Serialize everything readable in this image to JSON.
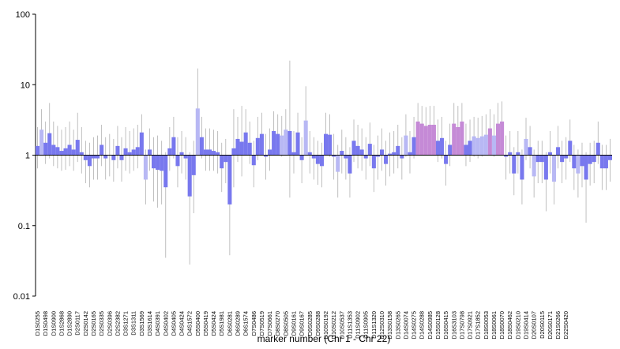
{
  "chart_data": {
    "type": "bar",
    "log_scale": true,
    "xlabel": "marker number (Chr 1 - Chr 22)",
    "ylim": [
      0.01,
      100
    ],
    "yticks": [
      0.01,
      0.1,
      1,
      10,
      100
    ],
    "baseline": 1,
    "categories": [
      "D1S0255",
      null,
      "D1S0498",
      null,
      "D1S0900",
      null,
      "D1S2868",
      null,
      "D1S2890",
      null,
      "D2S0117",
      null,
      "D2S0142",
      null,
      "D2S0165",
      null,
      "D2S0335",
      null,
      "D2S0396",
      null,
      "D2S2382",
      null,
      "D3S1271",
      null,
      "D3S1311",
      null,
      "D3S1569",
      null,
      "D3S1614",
      null,
      "D4S0391",
      null,
      "D4S0402",
      null,
      "D4S0405",
      null,
      "D4S0424",
      null,
      "D4S1572",
      null,
      "D5S0400",
      null,
      "D5S0419",
      null,
      "D5S0424",
      null,
      "D5S1981",
      null,
      "D6S0281",
      null,
      "D6S0289",
      null,
      "D6S1574",
      null,
      "D7S0486",
      null,
      "D7S0519",
      null,
      "D7S0661",
      null,
      "D8S0270",
      null,
      "D8S0505",
      null,
      "D9S0161",
      null,
      "D9S0167",
      null,
      "D9S0285",
      null,
      "D9S0288",
      null,
      "D10S0192",
      null,
      "D10S0212",
      null,
      "D10S0537",
      null,
      "D11S1353",
      null,
      "D11S0902",
      null,
      "D11S0905",
      null,
      "D11S1320",
      null,
      "D12S0310",
      null,
      "D13S0158",
      null,
      "D13S0265",
      null,
      "D14S0074",
      null,
      "D14S0275",
      null,
      "D14S0288",
      null,
      "D14S0985",
      null,
      "D15S0128",
      null,
      "D16S0415",
      null,
      "D16S3103",
      null,
      "D17S0798",
      null,
      "D17S0921",
      null,
      "D17S1852",
      null,
      "D18S0053",
      null,
      "D18S0061",
      null,
      "D18S0070",
      null,
      "D18S0462",
      null,
      "D19S0210",
      null,
      "D19S0414",
      null,
      "D20S0107",
      null,
      "D20S0115",
      null,
      "D20S0171",
      null,
      "D21S0266",
      null,
      "D22S0420",
      null,
      null,
      null,
      null,
      null,
      null,
      null,
      null,
      null,
      null,
      null
    ],
    "values": [
      1.35,
      2.3,
      1.5,
      2.05,
      1.4,
      1.3,
      1.15,
      1.25,
      1.4,
      1.2,
      1.65,
      1.1,
      0.85,
      0.7,
      0.9,
      0.9,
      1.4,
      0.9,
      1.0,
      0.85,
      1.35,
      0.85,
      1.25,
      1.1,
      1.2,
      1.3,
      2.1,
      0.45,
      1.2,
      0.65,
      0.62,
      0.6,
      0.35,
      1.25,
      1.8,
      0.7,
      1.1,
      0.9,
      0.26,
      0.52,
      4.6,
      1.8,
      1.2,
      1.2,
      1.15,
      1.1,
      0.65,
      0.8,
      0.2,
      1.25,
      1.7,
      1.55,
      2.1,
      1.5,
      0.72,
      1.75,
      2.0,
      0.95,
      1.2,
      2.2,
      2.0,
      1.9,
      2.3,
      2.2,
      1.1,
      2.1,
      0.85,
      3.1,
      1.1,
      0.9,
      0.75,
      0.7,
      2.0,
      1.95,
      0.95,
      0.58,
      1.15,
      0.9,
      0.55,
      1.6,
      1.35,
      1.2,
      0.9,
      1.45,
      0.65,
      0.95,
      1.2,
      0.75,
      1.05,
      1.1,
      1.35,
      0.9,
      1.9,
      1.1,
      1.8,
      3.0,
      2.8,
      2.6,
      2.7,
      2.7,
      1.6,
      1.75,
      0.75,
      1.4,
      2.8,
      2.5,
      3.0,
      1.4,
      1.6,
      1.85,
      1.75,
      1.85,
      1.95,
      2.4,
      1.9,
      2.8,
      3.0,
      0.95,
      1.1,
      0.55,
      1.1,
      0.45,
      1.7,
      1.3,
      0.5,
      0.8,
      0.8,
      0.45,
      1.1,
      0.42,
      1.3,
      0.8,
      0.9,
      1.6,
      0.65,
      0.55,
      0.7,
      0.45,
      0.75,
      0.8,
      1.5,
      0.65,
      0.65,
      0.85
    ],
    "upper": [
      2.5,
      4.5,
      3,
      5.5,
      3,
      2.6,
      2.3,
      2.5,
      3,
      2.3,
      4,
      2.5,
      1.6,
      1.5,
      1.8,
      1.9,
      2.7,
      1.8,
      2,
      1.7,
      2.6,
      1.8,
      2.5,
      2.2,
      2.4,
      2.7,
      3.8,
      1.2,
      2.4,
      1.8,
      1.9,
      1.6,
      1.1,
      2.5,
      3.5,
      1.8,
      2.2,
      1.8,
      1.1,
      1.6,
      17,
      3.5,
      2.4,
      2.4,
      2.3,
      2.2,
      1.5,
      1.7,
      0.9,
      4.5,
      3.5,
      5,
      4.5,
      3,
      1.6,
      3.5,
      4,
      2,
      2.4,
      4.2,
      3.8,
      3.6,
      4.5,
      22,
      2.2,
      4,
      1.8,
      9.5,
      2.2,
      1.8,
      1.6,
      1.5,
      4,
      3.8,
      2,
      1.4,
      2.3,
      1.8,
      1.3,
      3.2,
      2.7,
      2.4,
      1.8,
      2.9,
      1.4,
      1.9,
      2.4,
      1.6,
      2.1,
      2.2,
      2.7,
      1.8,
      3.8,
      2.2,
      3.5,
      5.5,
      5,
      4.8,
      5,
      5,
      3.2,
      3.5,
      1.6,
      2.8,
      5.5,
      5,
      5.5,
      2.8,
      3.2,
      3.5,
      3.4,
      3.6,
      3.8,
      4.5,
      3.8,
      5.5,
      5.8,
      1.9,
      2.2,
      1.3,
      2.2,
      1.2,
      3.4,
      2.6,
      1.2,
      1.6,
      1.6,
      1.1,
      2.2,
      1,
      2.6,
      1.6,
      1.8,
      3.2,
      1.4,
      1.2,
      1.5,
      1.1,
      1.5,
      1.6,
      3,
      1.4,
      1.4,
      1.7
    ],
    "lower": [
      0.65,
      1.1,
      0.75,
      0.9,
      0.7,
      0.65,
      0.6,
      0.62,
      0.7,
      0.6,
      0.8,
      0.55,
      0.4,
      0.35,
      0.45,
      0.45,
      0.7,
      0.45,
      0.5,
      0.42,
      0.65,
      0.42,
      0.6,
      0.55,
      0.6,
      0.65,
      1,
      0.2,
      0.6,
      0.22,
      0.18,
      0.2,
      0.035,
      0.6,
      0.9,
      0.35,
      0.55,
      0.45,
      0.028,
      0.15,
      1.3,
      0.9,
      0.6,
      0.6,
      0.6,
      0.55,
      0.3,
      0.4,
      0.038,
      0.35,
      0.8,
      0.5,
      1,
      0.75,
      0.35,
      0.85,
      1,
      0.45,
      0.6,
      1.1,
      1,
      0.95,
      1.1,
      0.25,
      0.55,
      1,
      0.4,
      1.1,
      0.55,
      0.45,
      0.38,
      0.35,
      1,
      0.95,
      0.45,
      0.25,
      0.55,
      0.45,
      0.25,
      0.8,
      0.65,
      0.6,
      0.45,
      0.7,
      0.3,
      0.45,
      0.6,
      0.37,
      0.5,
      0.55,
      0.65,
      0.45,
      0.95,
      0.55,
      0.9,
      1.6,
      1.5,
      1.4,
      1.4,
      1.4,
      0.8,
      0.9,
      0.37,
      0.7,
      1.4,
      1.2,
      1.5,
      0.7,
      0.8,
      0.95,
      0.9,
      0.95,
      1,
      1.2,
      0.95,
      1.4,
      1.5,
      0.45,
      0.55,
      0.27,
      0.55,
      0.2,
      0.85,
      0.65,
      0.25,
      0.4,
      0.4,
      0.16,
      0.55,
      0.2,
      0.65,
      0.4,
      0.45,
      0.8,
      0.32,
      0.25,
      0.35,
      0.11,
      0.37,
      0.4,
      0.75,
      0.32,
      0.32,
      0.42
    ],
    "colors": [
      "#7878ee",
      "#b8b8f4",
      "#7878ee",
      "#7878ee",
      "#7878ee",
      "#7878ee",
      "#7878ee",
      "#7878ee",
      "#7878ee",
      "#7878ee",
      "#7878ee",
      "#7878ee",
      "#7878ee",
      "#7878ee",
      "#7878ee",
      "#7878ee",
      "#7878ee",
      "#7878ee",
      "#7878ee",
      "#7878ee",
      "#7878ee",
      "#7878ee",
      "#7878ee",
      "#7878ee",
      "#7878ee",
      "#7878ee",
      "#7878ee",
      "#b8b8f4",
      "#7878ee",
      "#7878ee",
      "#7878ee",
      "#7878ee",
      "#7878ee",
      "#7878ee",
      "#7878ee",
      "#7878ee",
      "#7878ee",
      "#7878ee",
      "#7878ee",
      "#7878ee",
      "#b8b8f4",
      "#7878ee",
      "#7878ee",
      "#7878ee",
      "#7878ee",
      "#7878ee",
      "#7878ee",
      "#7878ee",
      "#7878ee",
      "#7878ee",
      "#7878ee",
      "#7878ee",
      "#7878ee",
      "#7878ee",
      "#7878ee",
      "#7878ee",
      "#7878ee",
      "#7878ee",
      "#7878ee",
      "#7878ee",
      "#7878ee",
      "#b8b8f4",
      "#b8b8f4",
      "#7878ee",
      "#7878ee",
      "#7878ee",
      "#7878ee",
      "#b8b8f4",
      "#7878ee",
      "#7878ee",
      "#7878ee",
      "#7878ee",
      "#7878ee",
      "#7878ee",
      "#7878ee",
      "#b8b8f4",
      "#7878ee",
      "#7878ee",
      "#7878ee",
      "#7878ee",
      "#7878ee",
      "#7878ee",
      "#7878ee",
      "#7878ee",
      "#7878ee",
      "#7878ee",
      "#7878ee",
      "#7878ee",
      "#7878ee",
      "#7878ee",
      "#7878ee",
      "#7878ee",
      "#b8b8f4",
      "#7878ee",
      "#7878ee",
      "#c58ad6",
      "#c58ad6",
      "#c58ad6",
      "#c58ad6",
      "#c58ad6",
      "#7878ee",
      "#7878ee",
      "#7878ee",
      "#7878ee",
      "#c58ad6",
      "#c58ad6",
      "#c58ad6",
      "#7878ee",
      "#7878ee",
      "#b8b8f4",
      "#b8b8f4",
      "#b8b8f4",
      "#b8b8f4",
      "#c58ad6",
      "#b8b8f4",
      "#c58ad6",
      "#c58ad6",
      "#7878ee",
      "#7878ee",
      "#7878ee",
      "#7878ee",
      "#7878ee",
      "#b8b8f4",
      "#7878ee",
      "#b8b8f4",
      "#7878ee",
      "#7878ee",
      "#7878ee",
      "#7878ee",
      "#b8b8f4",
      "#7878ee",
      "#7878ee",
      "#7878ee",
      "#7878ee",
      "#7878ee",
      "#b8b8f4",
      "#7878ee",
      "#7878ee",
      "#7878ee",
      "#7878ee",
      "#7878ee",
      "#7878ee",
      "#7878ee",
      "#7878ee"
    ],
    "whisker_color": "#b0b0b0"
  }
}
